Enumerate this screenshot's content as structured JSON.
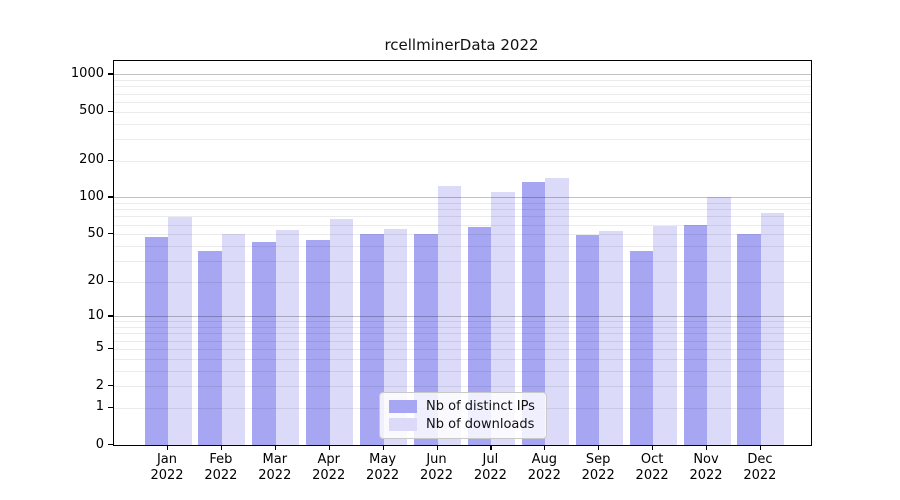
{
  "chart_data": {
    "type": "bar",
    "title": "rcellminerData 2022",
    "categories": [
      "Jan",
      "Feb",
      "Mar",
      "Apr",
      "May",
      "Jun",
      "Jul",
      "Aug",
      "Sep",
      "Oct",
      "Nov",
      "Dec"
    ],
    "category_year": "2022",
    "series": [
      {
        "name": "Nb of distinct IPs",
        "color": "#a6a6f3",
        "values": [
          47,
          36,
          43,
          45,
          50,
          50,
          57,
          133,
          49,
          36,
          59,
          50
        ]
      },
      {
        "name": "Nb of downloads",
        "color": "#dbdbf9",
        "values": [
          69,
          50,
          54,
          66,
          55,
          123,
          110,
          143,
          53,
          58,
          100,
          75
        ]
      }
    ],
    "y_axis": {
      "scale": "log1p",
      "tick_values": [
        1000,
        500,
        200,
        100,
        50,
        20,
        10,
        5,
        2,
        1,
        0
      ],
      "tick_labels": [
        "1000",
        "500",
        "200",
        "100",
        "50",
        "20",
        "10",
        "5",
        "2",
        "1",
        "0"
      ],
      "ylim": [
        0,
        1285
      ],
      "gridlines_major": [
        1000,
        100,
        10
      ],
      "gridlines_minor": [
        900,
        800,
        700,
        600,
        500,
        400,
        300,
        200,
        90,
        80,
        70,
        60,
        50,
        40,
        30,
        20,
        9,
        8,
        7,
        6,
        5,
        4,
        3,
        2,
        1
      ]
    },
    "legend": {
      "position": "bottom-center"
    },
    "colors": {
      "grid_major": "rgba(0,0,0,0.24)",
      "grid_minor": "rgba(0,0,0,0.08)",
      "axis": "#000000",
      "background": "#ffffff"
    }
  }
}
